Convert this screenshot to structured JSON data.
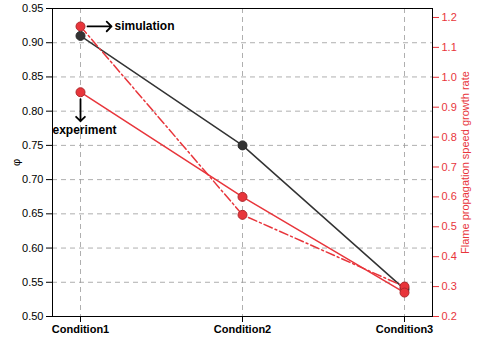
{
  "chart_data": {
    "type": "line",
    "categories": [
      "Condition1",
      "Condition2",
      "Condition3"
    ],
    "ylabel": "φ",
    "y2label": "Flame propagation speed growth rate",
    "ylim": [
      0.5,
      0.95
    ],
    "yticks": [
      {
        "value": 0.5,
        "label": "0.50"
      },
      0.55,
      {
        "value": 0.6,
        "label": "0.60"
      },
      0.65,
      {
        "value": 0.7,
        "label": "0.70"
      },
      0.75,
      {
        "value": 0.8,
        "label": "0.80"
      },
      0.85,
      {
        "value": 0.9,
        "label": "0.90"
      },
      0.95
    ],
    "y2lim": [
      0.2,
      1.23
    ],
    "y2ticks": [
      0.2,
      0.3,
      0.4,
      0.5,
      0.6,
      0.7,
      0.8,
      0.9,
      {
        "value": 1,
        "label": "1.0"
      },
      1.1,
      1.2
    ],
    "grid": true,
    "series": [
      {
        "name": "φ",
        "color": "#333333",
        "values": [
          0.91,
          0.75,
          0.54
        ],
        "marker": "circle",
        "line_style": "solid"
      },
      {
        "name": "simulation",
        "color": "#e8353b",
        "values": [
          1.17,
          0.54,
          0.3
        ],
        "axis": "y2",
        "marker": "circle",
        "line_style": "dashdot"
      },
      {
        "name": "experiment",
        "color": "#e8353b",
        "values": [
          0.95,
          0.6,
          0.28
        ],
        "axis": "y2",
        "marker": "circle",
        "line_style": "solid"
      }
    ]
  }
}
